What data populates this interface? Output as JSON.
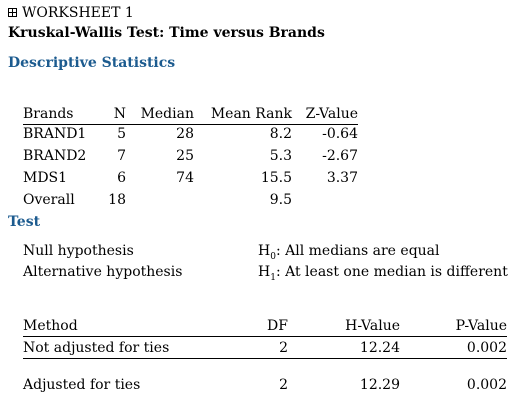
{
  "worksheet": {
    "icon": "grid-icon",
    "label": "WORKSHEET 1"
  },
  "title": "Kruskal-Wallis Test: Time versus Brands",
  "descriptive": {
    "heading": "Descriptive Statistics",
    "columns": [
      "Brands",
      "N",
      "Median",
      "Mean Rank",
      "Z-Value"
    ],
    "rows": [
      [
        "BRAND1",
        "5",
        "28",
        "8.2",
        "-0.64"
      ],
      [
        "BRAND2",
        "7",
        "25",
        "5.3",
        "-2.67"
      ],
      [
        "MDS1",
        "6",
        "74",
        "15.5",
        "3.37"
      ],
      [
        "Overall",
        "18",
        "",
        "9.5",
        ""
      ]
    ]
  },
  "test": {
    "heading": "Test",
    "null_label": "Null hypothesis",
    "null_symbol": "H",
    "null_sub": "0",
    "null_text": ": All medians are equal",
    "alt_label": "Alternative hypothesis",
    "alt_symbol": "H",
    "alt_sub": "1",
    "alt_text": ": At least one median is different",
    "columns": [
      "Method",
      "DF",
      "H-Value",
      "P-Value"
    ],
    "rows": [
      [
        "Not adjusted for ties",
        "2",
        "12.24",
        "0.002"
      ],
      [
        "Adjusted for ties",
        "2",
        "12.29",
        "0.002"
      ]
    ]
  },
  "colors": {
    "section_heading": "#1c5b8f"
  }
}
